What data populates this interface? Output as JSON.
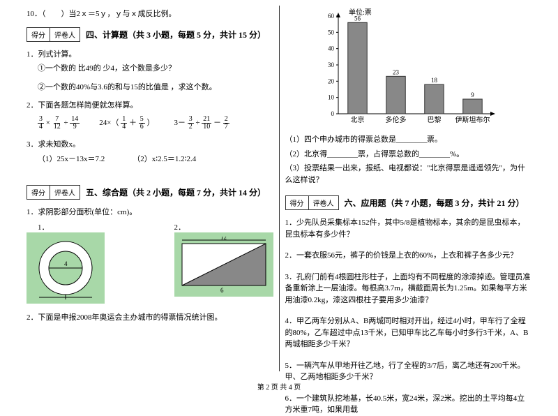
{
  "left": {
    "q10": "10．（　　）当2ｘ＝5ｙ，ｙ与ｘ成反比例。",
    "scoreLabels": [
      "得分",
      "评卷人"
    ],
    "sec4_title": "四、计算题（共 3 小题，每题 5 分，共计 15 分）",
    "s4q1": "1．列式计算。",
    "s4q1a": "①一个数的 比49的 少4，这个数是多少？",
    "s4q1b": "②一个数的40%与3.6的和与15的比值是 ，求这个数。",
    "s4q2": "2．下面各题怎样简便就怎样算。",
    "expr1": {
      "f1n": "3",
      "f1d": "4",
      "f2n": "7",
      "f2d": "12",
      "f3n": "14",
      "f3d": "9"
    },
    "expr2": {
      "lead": "24×（",
      "f1n": "1",
      "f1d": "4",
      "mid": "＋",
      "f2n": "5",
      "f2d": "6",
      "end": "）"
    },
    "expr3": {
      "lead": "3－",
      "f1n": "3",
      "f1d": "2",
      "op1": "÷",
      "f2n": "21",
      "f2d": "10",
      "op2": "－",
      "f3n": "2",
      "f3d": "7"
    },
    "s4q3": "3．求未知数x。",
    "s4q3a": "（1）25x－13x＝7.2",
    "s4q3b": "（2）x∶2.5＝1.2∶2.4",
    "sec5_title": "五、综合题（共 2 小题，每题 7 分，共计 14 分）",
    "s5q1": "1．求阴影部分面积(单位：cm)。",
    "s5q1L": "1．",
    "s5q1R": "2．",
    "fig1": {
      "outer_d": "6",
      "inner_d": "4"
    },
    "fig2": {
      "w": "12",
      "h": "6"
    },
    "s5q2": "2．下面是申报2008年奥运会主办城市的得票情况统计图。"
  },
  "right": {
    "chart": {
      "unit_label": "单位:票",
      "ymax": 60,
      "ytick": 10,
      "categories": [
        "北京",
        "多伦多",
        "巴黎",
        "伊斯坦布尔"
      ],
      "values": [
        56,
        23,
        18,
        9
      ],
      "bar_color": "#888888",
      "axis_color": "#000000",
      "bg": "#ffffff"
    },
    "c1": "（1）四个申办城市的得票总数是________票。",
    "c2": "（2）北京得________票，占得票总数的________%。",
    "c3": "（3）投票结果一出来，报纸、电视都说：\"北京得票是遥遥领先\"，为什么这样说？",
    "scoreLabels": [
      "得分",
      "评卷人"
    ],
    "sec6_title": "六、应用题（共 7 小题，每题 3 分，共计 21 分）",
    "s6q1": "1．少先队员采集标本152件，其中5/8是植物标本，其余的是昆虫标本，昆虫标本有多少件？",
    "s6q2": "2．一套衣服56元，裤子的价钱是上衣的60%，上衣和裤子各多少元？",
    "s6q3": "3．孔府门前有4根圆柱形柱子，上面均有不同程度的涂漆掉迹。管理员准备重新涂上一层油漆。每根高3.7m，横截面周长为1.25m。如果每平方米用油漆0.2kg，漆这四根柱子要用多少油漆？",
    "s6q4": "4．甲乙两车分别从A、B两城同时相对开出，经过4小时，甲车行了全程的80%，乙车超过中点13千米，已知甲车比乙车每小时多行3千米，A、B两城相距多少千米？",
    "s6q5": "5．一辆汽车从甲地开往乙地，行了全程的3/7后，离乙地还有200千米。甲、乙两地相距多少千米？",
    "s6q6": "6．一个建筑队挖地基，长40.5米，宽24米，深2米。挖出的土平均每4立方米重7吨，如果用载"
  },
  "footer": "第 2 页 共 4 页"
}
